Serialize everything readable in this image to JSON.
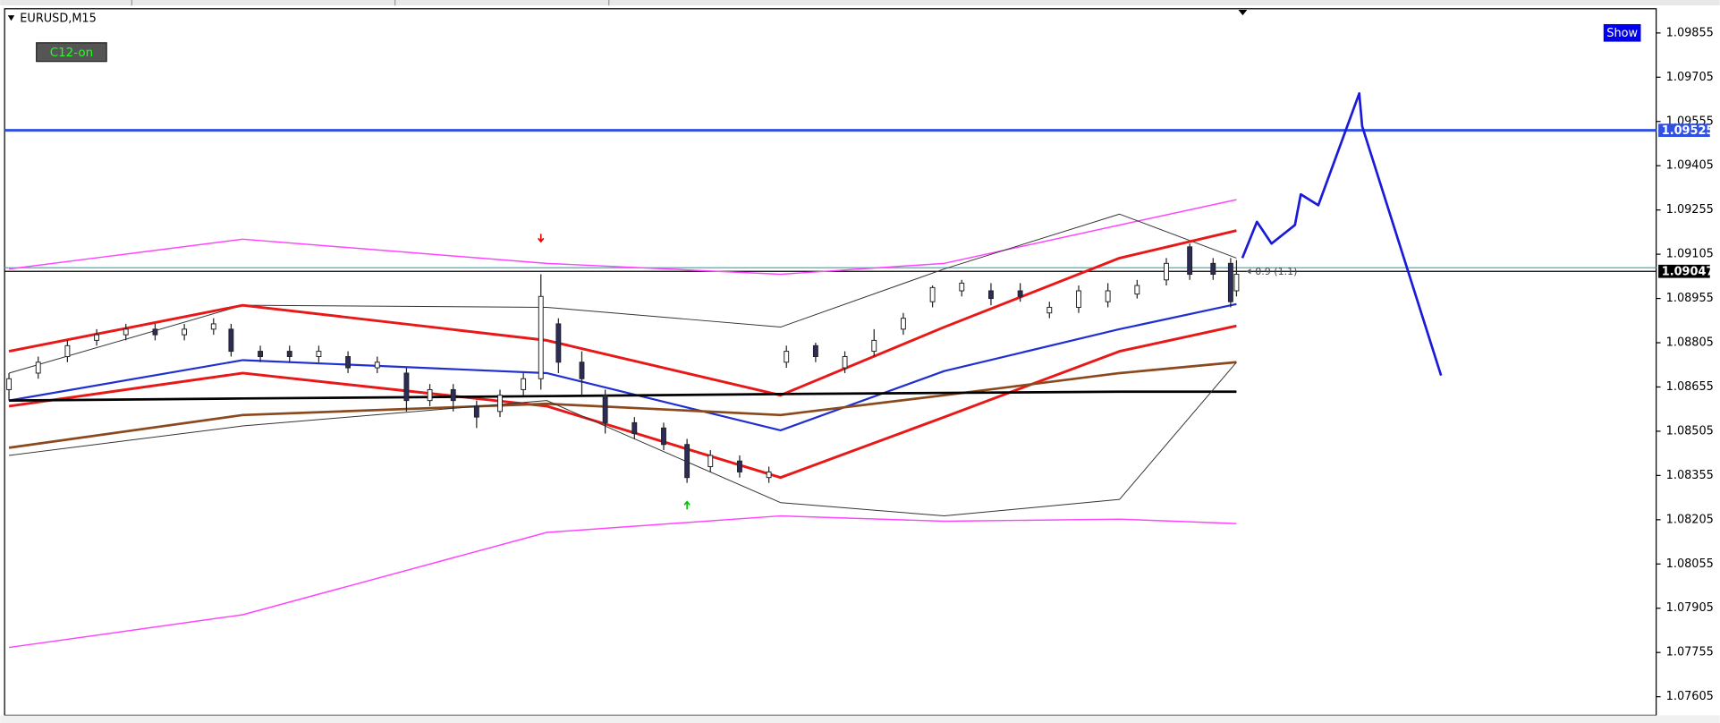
{
  "chart_data": {
    "type": "candlestick",
    "symbol": "EURUSD,M15",
    "button": "C12-on",
    "show_button": "Show",
    "annotation": "0.9 (1.1)",
    "xlim": [
      -0.75,
      281.8
    ],
    "ylim": [
      1.07542,
      1.09937
    ],
    "yticks": [
      1.09855,
      1.09705,
      1.09555,
      1.09405,
      1.09255,
      1.09105,
      1.08955,
      1.08805,
      1.08655,
      1.08505,
      1.08355,
      1.08205,
      1.08055,
      1.07905,
      1.07755,
      1.07605
    ],
    "candles": {
      "x": [
        0,
        5,
        10,
        15,
        20,
        25,
        30,
        35,
        38,
        43,
        48,
        53,
        58,
        63,
        68,
        72,
        76,
        80,
        84,
        88,
        91,
        94,
        98,
        102,
        107,
        112,
        116,
        120,
        125,
        130,
        133,
        138,
        143,
        148,
        153,
        158,
        163,
        168,
        173,
        178,
        183,
        188,
        193,
        198,
        202,
        206,
        209,
        210
      ],
      "open": [
        1.08646,
        1.08702,
        1.08758,
        1.08813,
        1.08832,
        1.08851,
        1.08832,
        1.08851,
        1.08851,
        1.08776,
        1.08776,
        1.08758,
        1.08758,
        1.0872,
        1.08702,
        1.08609,
        1.08646,
        1.0859,
        1.08572,
        1.08646,
        1.08683,
        1.08869,
        1.08739,
        1.08627,
        1.08534,
        1.08516,
        1.0846,
        1.08385,
        1.08404,
        1.08348,
        1.08739,
        1.08795,
        1.0872,
        1.08776,
        1.08851,
        1.08944,
        1.08981,
        1.08981,
        1.08981,
        1.08906,
        1.08925,
        1.08944,
        1.0897,
        1.09018,
        1.0913,
        1.09074,
        1.09074,
        1.08981
      ],
      "high": [
        1.08702,
        1.08758,
        1.08813,
        1.08851,
        1.08869,
        1.08869,
        1.08869,
        1.08888,
        1.08869,
        1.08795,
        1.08795,
        1.08795,
        1.08776,
        1.08758,
        1.0872,
        1.08665,
        1.08665,
        1.08609,
        1.08646,
        1.08702,
        1.09037,
        1.08888,
        1.08776,
        1.08646,
        1.08553,
        1.08534,
        1.08479,
        1.08441,
        1.08423,
        1.08385,
        1.08795,
        1.08805,
        1.08776,
        1.08851,
        1.08906,
        1.08999,
        1.09018,
        1.09007,
        1.09007,
        1.08944,
        1.08999,
        1.09007,
        1.09018,
        1.09092,
        1.09141,
        1.09092,
        1.09092,
        1.09085
      ],
      "low": [
        1.08609,
        1.08683,
        1.08739,
        1.08795,
        1.08813,
        1.08813,
        1.08813,
        1.08832,
        1.08758,
        1.08739,
        1.08739,
        1.08739,
        1.08702,
        1.08702,
        1.08572,
        1.0859,
        1.08572,
        1.08516,
        1.08553,
        1.08627,
        1.08646,
        1.08702,
        1.08627,
        1.08497,
        1.08479,
        1.08441,
        1.0833,
        1.08367,
        1.08348,
        1.0833,
        1.0872,
        1.08739,
        1.08702,
        1.08758,
        1.08832,
        1.08925,
        1.08962,
        1.08932,
        1.08944,
        1.08888,
        1.08906,
        1.08925,
        1.08955,
        1.08999,
        1.09018,
        1.09018,
        1.08925,
        1.08962
      ],
      "close": [
        1.08683,
        1.08739,
        1.08795,
        1.08832,
        1.08851,
        1.08832,
        1.08851,
        1.08869,
        1.08776,
        1.08758,
        1.08758,
        1.08776,
        1.0872,
        1.08739,
        1.08609,
        1.08646,
        1.08609,
        1.08553,
        1.08627,
        1.08683,
        1.08962,
        1.08739,
        1.08683,
        1.08534,
        1.08497,
        1.0846,
        1.08348,
        1.08423,
        1.08367,
        1.08367,
        1.08776,
        1.08758,
        1.08758,
        1.08813,
        1.08888,
        1.08992,
        1.09007,
        1.08955,
        1.08962,
        1.08925,
        1.08981,
        1.08981,
        1.08999,
        1.09074,
        1.09037,
        1.09037,
        1.08944,
        1.09037
      ]
    },
    "bull_color": "#ffffff",
    "bear_color": "#2b2b5c",
    "lines_x": [
      0,
      40,
      92,
      132,
      160,
      190,
      210
    ],
    "lines": [
      {
        "color": "#ff44ff",
        "width": 1.2,
        "values": [
          1.09055,
          1.09156,
          1.09074,
          1.09037,
          1.09074,
          1.09204,
          1.0929
        ]
      },
      {
        "color": "#333333",
        "width": 0.8,
        "values": [
          1.08702,
          1.08932,
          1.08925,
          1.08858,
          1.09055,
          1.09241,
          1.09092
        ]
      },
      {
        "color": "#e81818",
        "width": 2.4,
        "values": [
          1.08776,
          1.08932,
          1.08813,
          1.08627,
          1.08858,
          1.09092,
          1.09185
        ]
      },
      {
        "color": "#2030d0",
        "width": 1.8,
        "values": [
          1.08609,
          1.08746,
          1.08702,
          1.08508,
          1.08709,
          1.08851,
          1.08936
        ]
      },
      {
        "color": "#e81818",
        "width": 2.4,
        "values": [
          1.0859,
          1.08702,
          1.0859,
          1.08348,
          1.08553,
          1.08776,
          1.08862
        ]
      },
      {
        "color": "#8b4a1e",
        "width": 2.2,
        "values": [
          1.08449,
          1.0856,
          1.08598,
          1.0856,
          1.08627,
          1.08702,
          1.08739
        ]
      },
      {
        "color": "#000000",
        "width": 2.2,
        "values": [
          1.08609,
          1.08616,
          1.08624,
          1.08631,
          1.08635,
          1.08639,
          1.08639
        ]
      },
      {
        "color": "#333333",
        "width": 0.8,
        "values": [
          1.08423,
          1.08523,
          1.08609,
          1.08263,
          1.08218,
          1.08274,
          1.08739
        ]
      },
      {
        "color": "#ff44ff",
        "width": 1.2,
        "values": [
          1.07772,
          1.07883,
          1.08162,
          1.08218,
          1.082,
          1.08207,
          1.08192
        ]
      }
    ],
    "projection": {
      "color": "#1a1ad8",
      "x": [
        211,
        213.5,
        216,
        220,
        221,
        224,
        231,
        231.5,
        245
      ],
      "values": [
        1.09092,
        1.09215,
        1.09141,
        1.09204,
        1.09308,
        1.09271,
        1.0965,
        1.09539,
        1.08694
      ]
    },
    "levels": [
      {
        "value": 1.09525,
        "color": "#3050e0",
        "labeled": true
      },
      {
        "value": 1.09059,
        "color": "#40b0b0",
        "labeled": false
      },
      {
        "value": 1.09047,
        "color": "#000000",
        "labeled": true
      }
    ],
    "signals": [
      {
        "x": 91,
        "price": 1.09159,
        "direction": "down",
        "color": "#e00000"
      },
      {
        "x": 116,
        "price": 1.08255,
        "direction": "up",
        "color": "#00c000"
      }
    ]
  }
}
